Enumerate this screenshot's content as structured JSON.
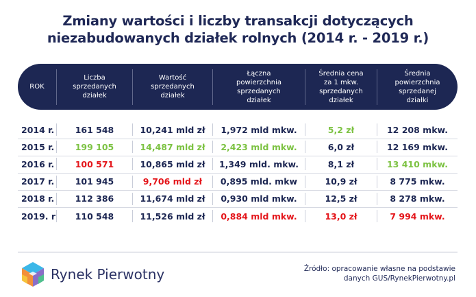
{
  "title": {
    "line1": "Zmiany wartości i liczby transakcji dotyczących",
    "line2": "niezabudowanych działek rolnych (2014 r. - 2019 r.)"
  },
  "columns": [
    "ROK",
    "Liczba\nsprzedanych\ndziałek",
    "Wartość\nsprzedanych\ndziałek",
    "Łączna\npowierzchnia\nsprzedanych\ndziałek",
    "Średnia cena\nza 1 mkw.\nsprzedanych\ndziałek",
    "Średnia\npowierzchnia\nsprzedanej\ndziałki"
  ],
  "rows": [
    [
      "2014 r.",
      "161 548",
      "10,241 mld zł",
      "1,972 mld mkw.",
      "5,2 zł",
      "12 208 mkw."
    ],
    [
      "2015 r.",
      "199 105",
      "14,487 mld zł",
      "2,423 mld mkw.",
      "6,0 zł",
      "12 169 mkw."
    ],
    [
      "2016 r.",
      "100 571",
      "10,865 mld zł",
      "1,349 mld. mkw.",
      "8,1 zł",
      "13 410 mkw."
    ],
    [
      "2017 r.",
      "101 945",
      "9,706 mld zł",
      "0,895 mld. mkw",
      "10,9 zł",
      "8 775 mkw."
    ],
    [
      "2018 r.",
      "112 386",
      "11,674 mld zł",
      "0,930 mld mkw.",
      "12,5 zł",
      "8 278 mkw."
    ],
    [
      "2019. r",
      "110 548",
      "11,526 mld zł",
      "0,884 mld mkw.",
      "13,0 zł",
      "7 994 mkw."
    ]
  ],
  "highlights": [
    [
      "",
      "",
      "",
      "",
      "green",
      ""
    ],
    [
      "",
      "green",
      "green",
      "green",
      "",
      ""
    ],
    [
      "",
      "red",
      "",
      "",
      "",
      "green"
    ],
    [
      "",
      "",
      "red",
      "",
      "",
      ""
    ],
    [
      "",
      "",
      "",
      "",
      "",
      ""
    ],
    [
      "",
      "",
      "",
      "red",
      "red",
      "red"
    ]
  ],
  "colors": {
    "navy": "#1d2753",
    "green": "#7cc242",
    "red": "#e4161b"
  },
  "logo": {
    "text": "Rynek Pierwotny"
  },
  "source": {
    "line1": "Źródło: opracowanie własne na podstawie",
    "line2": "danych GUS/RynekPierwotny.pl"
  }
}
